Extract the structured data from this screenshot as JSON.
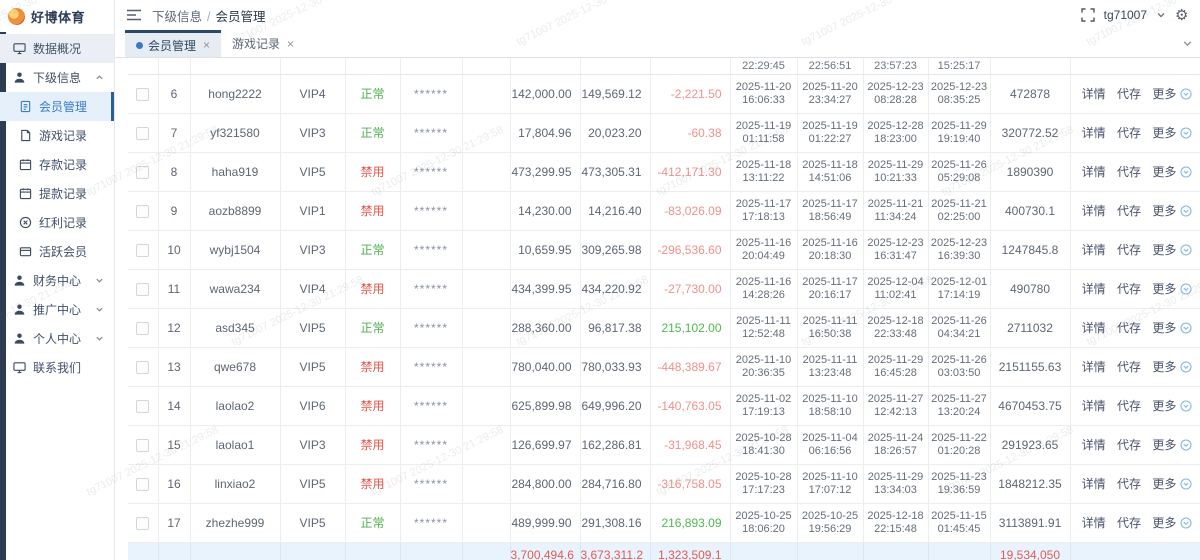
{
  "app": {
    "logo_text": "好博体育"
  },
  "sidebar": {
    "items": [
      {
        "label": "数据概况"
      },
      {
        "label": "下级信息"
      },
      {
        "label": "会员管理"
      },
      {
        "label": "游戏记录"
      },
      {
        "label": "存款记录"
      },
      {
        "label": "提款记录"
      },
      {
        "label": "红利记录"
      },
      {
        "label": "活跃会员"
      },
      {
        "label": "财务中心"
      },
      {
        "label": "推广中心"
      },
      {
        "label": "个人中心"
      },
      {
        "label": "联系我们"
      }
    ]
  },
  "header": {
    "breadcrumb": {
      "parent": "下级信息",
      "separator": "/",
      "current": "会员管理"
    },
    "username": "tg71007"
  },
  "tabs": [
    {
      "label": "会员管理",
      "close": "×",
      "active": true
    },
    {
      "label": "游戏记录",
      "close": "×",
      "active": false
    }
  ],
  "watermark": "tg71007 2025-12-30 21:29:58",
  "colors": {
    "accent_blue": "#3a7bc8",
    "navy": "#2e3c52",
    "status_normal_green": "#4db14d",
    "status_disabled_red": "#e0584e",
    "negative_red": "#f0908a",
    "positive_green": "#4fb84f",
    "summary_red": "#e25b52"
  },
  "table": {
    "partial_top_times": [
      "22:29:45",
      "22:56:51",
      "23:57:23",
      "15:25:17"
    ],
    "actions": [
      "详情",
      "代存",
      "更多"
    ],
    "status_labels": {
      "ok": "正常",
      "off": "禁用"
    },
    "rows": [
      {
        "index": "6",
        "username": "hong2222",
        "vip": "VIP4",
        "status": "正常",
        "status_type": "ok",
        "password": "******",
        "deposit": "142,000.00",
        "bet": "149,569.12",
        "profit": "-2,221.50",
        "date1": "2025-11-20 16:06:33",
        "date2": "2025-11-20 23:34:27",
        "date3": "2025-12-23 08:28:28",
        "date4": "2025-12-23 08:35:25",
        "code": "472878"
      },
      {
        "index": "7",
        "username": "yf321580",
        "vip": "VIP3",
        "status": "正常",
        "status_type": "ok",
        "password": "******",
        "deposit": "17,804.96",
        "bet": "20,023.20",
        "profit": "-60.38",
        "date1": "2025-11-19 01:11:58",
        "date2": "2025-11-19 01:22:27",
        "date3": "2025-12-28 18:23:00",
        "date4": "2025-11-29 19:19:40",
        "code": "320772.52"
      },
      {
        "index": "8",
        "username": "haha919",
        "vip": "VIP5",
        "status": "禁用",
        "status_type": "off",
        "password": "******",
        "deposit": "473,299.95",
        "bet": "473,305.31",
        "profit": "-412,171.30",
        "date1": "2025-11-18 13:11:22",
        "date2": "2025-11-18 14:51:06",
        "date3": "2025-11-29 10:21:33",
        "date4": "2025-11-26 05:29:08",
        "code": "1890390"
      },
      {
        "index": "9",
        "username": "aozb8899",
        "vip": "VIP1",
        "status": "禁用",
        "status_type": "off",
        "password": "******",
        "deposit": "14,230.00",
        "bet": "14,216.40",
        "profit": "-83,026.09",
        "date1": "2025-11-17 17:18:13",
        "date2": "2025-11-17 18:56:49",
        "date3": "2025-11-21 11:34:24",
        "date4": "2025-11-21 02:25:00",
        "code": "400730.1"
      },
      {
        "index": "10",
        "username": "wybj1504",
        "vip": "VIP3",
        "status": "正常",
        "status_type": "ok",
        "password": "******",
        "deposit": "10,659.95",
        "bet": "309,265.98",
        "profit": "-296,536.60",
        "date1": "2025-11-16 20:04:49",
        "date2": "2025-11-16 20:18:30",
        "date3": "2025-12-23 16:31:47",
        "date4": "2025-12-23 16:39:30",
        "code": "1247845.8"
      },
      {
        "index": "11",
        "username": "wawa234",
        "vip": "VIP4",
        "status": "禁用",
        "status_type": "off",
        "password": "******",
        "deposit": "434,399.95",
        "bet": "434,220.92",
        "profit": "-27,730.00",
        "date1": "2025-11-16 14:28:26",
        "date2": "2025-11-17 20:16:17",
        "date3": "2025-12-04 11:02:41",
        "date4": "2025-12-01 17:14:19",
        "code": "490780"
      },
      {
        "index": "12",
        "username": "asd345",
        "vip": "VIP5",
        "status": "正常",
        "status_type": "ok",
        "password": "******",
        "deposit": "288,360.00",
        "bet": "96,817.38",
        "profit": "215,102.00",
        "date1": "2025-11-11 12:52:48",
        "date2": "2025-11-11 16:50:38",
        "date3": "2025-12-18 22:33:48",
        "date4": "2025-11-26 04:34:21",
        "code": "2711032"
      },
      {
        "index": "13",
        "username": "qwe678",
        "vip": "VIP5",
        "status": "禁用",
        "status_type": "off",
        "password": "******",
        "deposit": "780,040.00",
        "bet": "780,033.93",
        "profit": "-448,389.67",
        "date1": "2025-11-10 20:36:35",
        "date2": "2025-11-11 13:23:48",
        "date3": "2025-11-29 16:45:28",
        "date4": "2025-11-26 03:03:50",
        "code": "2151155.63"
      },
      {
        "index": "14",
        "username": "laolao2",
        "vip": "VIP6",
        "status": "禁用",
        "status_type": "off",
        "password": "******",
        "deposit": "625,899.98",
        "bet": "649,996.20",
        "profit": "-140,763.05",
        "date1": "2025-11-02 17:19:13",
        "date2": "2025-11-10 18:58:10",
        "date3": "2025-11-27 12:42:13",
        "date4": "2025-11-27 13:20:24",
        "code": "4670453.75"
      },
      {
        "index": "15",
        "username": "laolao1",
        "vip": "VIP3",
        "status": "禁用",
        "status_type": "off",
        "password": "******",
        "deposit": "126,699.97",
        "bet": "162,286.81",
        "profit": "-31,968.45",
        "date1": "2025-10-28 18:41:30",
        "date2": "2025-11-04 06:16:56",
        "date3": "2025-11-24 18:26:57",
        "date4": "2025-11-22 01:20:28",
        "code": "291923.65"
      },
      {
        "index": "16",
        "username": "linxiao2",
        "vip": "VIP5",
        "status": "禁用",
        "status_type": "off",
        "password": "******",
        "deposit": "284,800.00",
        "bet": "284,716.80",
        "profit": "-316,758.05",
        "date1": "2025-10-28 17:17:23",
        "date2": "2025-11-10 17:07:12",
        "date3": "2025-11-29 13:34:03",
        "date4": "2025-11-23 19:36:59",
        "code": "1848212.35"
      },
      {
        "index": "17",
        "username": "zhezhe999",
        "vip": "VIP5",
        "status": "正常",
        "status_type": "ok",
        "password": "******",
        "deposit": "489,999.90",
        "bet": "291,308.16",
        "profit": "216,893.09",
        "date1": "2025-10-25 18:06:20",
        "date2": "2025-10-25 19:56:29",
        "date3": "2025-12-18 22:15:48",
        "date4": "2025-11-15 01:45:45",
        "code": "3113891.91"
      }
    ],
    "summary": {
      "deposit": "3,700,494.6",
      "bet": "3,673,311.2",
      "profit": "1,323,509.1",
      "code": "19,534,050"
    }
  }
}
